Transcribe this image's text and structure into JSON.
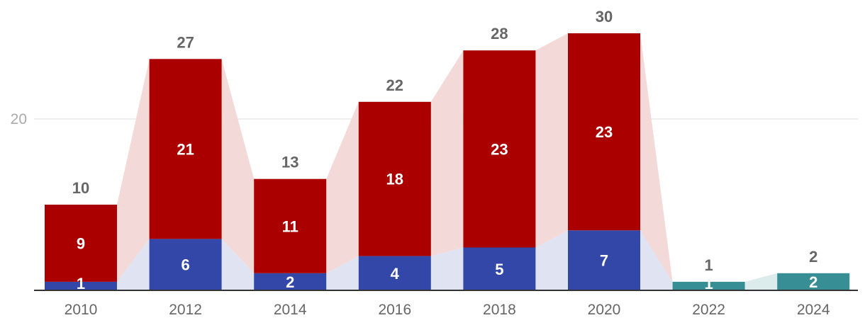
{
  "chart_data": {
    "type": "bar",
    "stacked": true,
    "categories": [
      "2010",
      "2012",
      "2014",
      "2016",
      "2018",
      "2020",
      "2022",
      "2024"
    ],
    "series": [
      {
        "color": "#3347a8",
        "values": [
          1,
          6,
          2,
          4,
          5,
          7,
          null,
          null
        ]
      },
      {
        "color": "#aa0000",
        "values": [
          9,
          21,
          11,
          18,
          23,
          23,
          null,
          null
        ]
      },
      {
        "color": "#388e95",
        "values": [
          null,
          null,
          null,
          null,
          null,
          null,
          1,
          2
        ]
      }
    ],
    "totals": [
      10,
      27,
      13,
      22,
      28,
      30,
      1,
      2
    ],
    "connector_colors": {
      "#3347a8": "#e0e3f2",
      "#aa0000": "#f4d9d9",
      "#388e95": "#dcecec"
    },
    "y_ticks": [
      20
    ],
    "ylim": [
      0,
      33
    ],
    "grid": true,
    "legend": false,
    "title": "",
    "xlabel": "",
    "ylabel": ""
  }
}
